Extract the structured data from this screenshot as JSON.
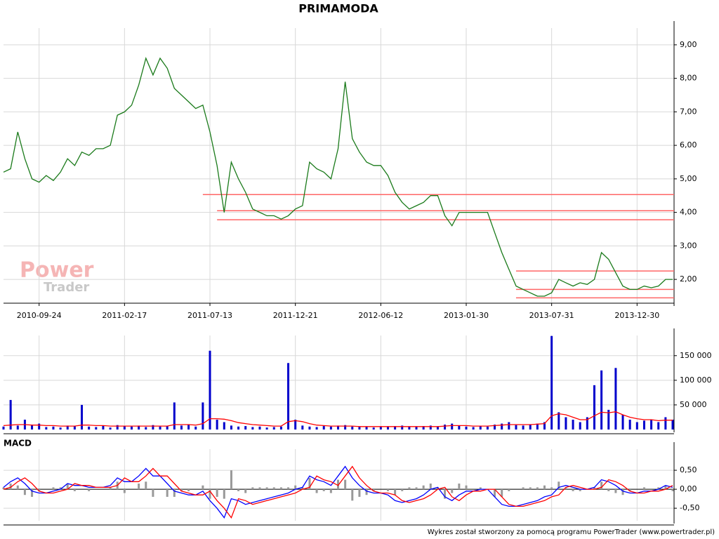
{
  "chart_data": [
    {
      "type": "line",
      "title": "PRIMAMODA",
      "watermark": [
        "Power",
        "Trader"
      ],
      "categories": [
        null,
        null,
        null,
        null,
        null,
        "2010-09-24",
        null,
        null,
        null,
        null,
        null,
        null,
        null,
        null,
        null,
        null,
        null,
        "2011-02-17",
        null,
        null,
        null,
        null,
        null,
        null,
        null,
        null,
        null,
        null,
        null,
        "2011-07-13",
        null,
        null,
        null,
        null,
        null,
        null,
        null,
        null,
        null,
        null,
        null,
        "2011-12-21",
        null,
        null,
        null,
        null,
        null,
        null,
        null,
        null,
        null,
        null,
        null,
        "2012-06-12",
        null,
        null,
        null,
        null,
        null,
        null,
        null,
        null,
        null,
        null,
        null,
        "2013-01-30",
        null,
        null,
        null,
        null,
        null,
        null,
        null,
        null,
        null,
        null,
        null,
        "2013-07-31",
        null,
        null,
        null,
        null,
        null,
        null,
        null,
        null,
        null,
        null,
        null,
        "2013-12-30",
        null,
        null,
        null,
        null,
        null
      ],
      "values": [
        5.2,
        5.3,
        6.4,
        5.6,
        5.0,
        4.9,
        5.1,
        4.95,
        5.2,
        5.6,
        5.4,
        5.8,
        5.7,
        5.9,
        5.9,
        6.0,
        6.9,
        7.0,
        7.2,
        7.8,
        8.6,
        8.1,
        8.6,
        8.3,
        7.7,
        7.5,
        7.3,
        7.1,
        7.2,
        6.4,
        5.4,
        4.0,
        5.5,
        5.0,
        4.6,
        4.1,
        4.0,
        3.9,
        3.9,
        3.8,
        3.9,
        4.1,
        4.2,
        5.5,
        5.3,
        5.2,
        5.0,
        5.9,
        7.9,
        6.2,
        5.8,
        5.5,
        5.4,
        5.4,
        5.1,
        4.6,
        4.3,
        4.1,
        4.2,
        4.3,
        4.5,
        4.5,
        3.9,
        3.6,
        4.0,
        4.0,
        4.0,
        4.0,
        4.0,
        3.4,
        2.8,
        2.3,
        1.8,
        1.7,
        1.6,
        1.5,
        1.5,
        1.6,
        2.0,
        1.9,
        1.8,
        1.9,
        1.85,
        2.0,
        2.8,
        2.6,
        2.2,
        1.8,
        1.7,
        1.7,
        1.8,
        1.75,
        1.8,
        2.0,
        2.0
      ],
      "color": "#1a7a1a",
      "levels": [
        {
          "value": 4.53,
          "start": 28
        },
        {
          "value": 4.05,
          "start": 30
        },
        {
          "value": 3.78,
          "start": 30
        },
        {
          "value": 2.25,
          "start": 72
        },
        {
          "value": 1.7,
          "start": 72
        },
        {
          "value": 1.45,
          "start": 72
        }
      ],
      "level_color": "#ff6666",
      "ylim": [
        1.29,
        9.5
      ],
      "yticks": [
        {
          "value": 2,
          "label": "2,00"
        },
        {
          "value": 3,
          "label": "3,00"
        },
        {
          "value": 4,
          "label": "4,00"
        },
        {
          "value": 5,
          "label": "5,00"
        },
        {
          "value": 6,
          "label": "6,00"
        },
        {
          "value": 7,
          "label": "7,00"
        },
        {
          "value": 8,
          "label": "8,00"
        },
        {
          "value": 9,
          "label": "9,00"
        }
      ],
      "grid": true
    },
    {
      "type": "bar",
      "series": [
        {
          "color": "#0000cc",
          "values": [
            6000,
            60000,
            8000,
            20000,
            10000,
            12000,
            5000,
            6000,
            4000,
            8000,
            7000,
            50000,
            6000,
            5000,
            8000,
            4000,
            9000,
            7000,
            6000,
            8000,
            5000,
            9000,
            6000,
            7000,
            55000,
            8000,
            10000,
            6000,
            55000,
            160000,
            20000,
            15000,
            8000,
            6000,
            7000,
            5000,
            6000,
            4000,
            5000,
            6000,
            135000,
            20000,
            8000,
            6000,
            5000,
            7000,
            6000,
            8000,
            9000,
            6000,
            5000,
            6000,
            4000,
            5000,
            6000,
            7000,
            8000,
            5000,
            6000,
            7000,
            8000,
            6000,
            10000,
            12000,
            8000,
            6000,
            5000,
            7000,
            6000,
            10000,
            12000,
            15000,
            9000,
            8000,
            10000,
            12000,
            15000,
            190000,
            35000,
            25000,
            20000,
            15000,
            25000,
            90000,
            120000,
            40000,
            125000,
            30000,
            20000,
            15000,
            18000,
            20000,
            15000,
            25000,
            20000
          ]
        },
        {
          "color": "#ff0000",
          "kind": "line",
          "values": [
            8000,
            9000,
            10000,
            10000,
            9000,
            9000,
            8000,
            8000,
            7000,
            7000,
            7000,
            9000,
            9000,
            8000,
            8000,
            7000,
            7000,
            7000,
            7000,
            7000,
            7000,
            7000,
            7000,
            7000,
            10000,
            10000,
            10000,
            9000,
            12000,
            22000,
            22000,
            21000,
            18000,
            14000,
            12000,
            10000,
            9000,
            8000,
            7000,
            7000,
            16000,
            18000,
            16000,
            12000,
            9000,
            8000,
            7000,
            7000,
            7000,
            7000,
            6000,
            6000,
            6000,
            6000,
            6000,
            6000,
            6000,
            6000,
            6000,
            6000,
            6000,
            6000,
            7000,
            8000,
            8000,
            8000,
            7000,
            7000,
            7000,
            8000,
            9000,
            10000,
            10000,
            10000,
            10000,
            11000,
            12000,
            28000,
            32000,
            30000,
            25000,
            20000,
            20000,
            28000,
            35000,
            34000,
            36000,
            30000,
            25000,
            22000,
            20000,
            20000,
            18000,
            19000,
            19000
          ]
        }
      ],
      "ylim": [
        0,
        191000
      ],
      "yticks": [
        {
          "value": 50000,
          "label": "50 000"
        },
        {
          "value": 100000,
          "label": "100 000"
        },
        {
          "value": 150000,
          "label": "150 000"
        }
      ],
      "grid": true
    },
    {
      "type": "line",
      "title": "MACD",
      "series": [
        {
          "color": "#999999",
          "kind": "bar",
          "values": [
            0.05,
            0.15,
            0.1,
            -0.15,
            -0.2,
            -0.05,
            0,
            0.05,
            0.05,
            0.15,
            -0.05,
            0,
            -0.05,
            0,
            0,
            0.05,
            0.2,
            -0.1,
            0,
            0.15,
            0.2,
            -0.2,
            0,
            -0.2,
            -0.2,
            -0.05,
            -0.05,
            0,
            0.1,
            -0.25,
            -0.2,
            -0.25,
            0.5,
            -0.05,
            -0.1,
            0.05,
            0.05,
            0.05,
            0.05,
            0.05,
            0.05,
            0.1,
            0.05,
            0.3,
            -0.1,
            -0.05,
            -0.1,
            0.25,
            0.25,
            -0.3,
            -0.2,
            -0.15,
            -0.05,
            0,
            -0.05,
            -0.15,
            -0.05,
            0.05,
            0.05,
            0.1,
            0.15,
            0.05,
            -0.25,
            -0.1,
            0.15,
            0.1,
            0,
            0.05,
            0,
            -0.2,
            -0.2,
            -0.05,
            0,
            0.05,
            0.05,
            0.05,
            0.1,
            0.05,
            0.2,
            0.05,
            -0.05,
            -0.05,
            0,
            0.05,
            0.2,
            -0.05,
            -0.1,
            -0.15,
            -0.05,
            0,
            0.05,
            0,
            0.05,
            0.1,
            -0.05
          ]
        },
        {
          "color": "#0000ff",
          "values": [
            0.05,
            0.2,
            0.3,
            0.15,
            -0.05,
            -0.1,
            -0.1,
            -0.05,
            0,
            0.15,
            0.1,
            0.1,
            0.05,
            0.05,
            0.05,
            0.1,
            0.3,
            0.2,
            0.2,
            0.35,
            0.55,
            0.35,
            0.35,
            0.15,
            -0.05,
            -0.1,
            -0.15,
            -0.15,
            -0.05,
            -0.3,
            -0.5,
            -0.75,
            -0.25,
            -0.3,
            -0.4,
            -0.35,
            -0.3,
            -0.25,
            -0.2,
            -0.15,
            -0.1,
            0,
            0.05,
            0.35,
            0.25,
            0.2,
            0.1,
            0.35,
            0.6,
            0.3,
            0.1,
            -0.05,
            -0.1,
            -0.1,
            -0.15,
            -0.3,
            -0.35,
            -0.3,
            -0.25,
            -0.15,
            0,
            0.05,
            -0.2,
            -0.3,
            -0.15,
            -0.05,
            -0.05,
            0,
            0,
            -0.2,
            -0.4,
            -0.45,
            -0.45,
            -0.4,
            -0.35,
            -0.3,
            -0.2,
            -0.15,
            0.05,
            0.1,
            0.05,
            0,
            0,
            0.05,
            0.25,
            0.2,
            0.1,
            -0.05,
            -0.1,
            -0.1,
            -0.05,
            -0.05,
            0,
            0.1,
            0.05
          ]
        },
        {
          "color": "#ff0000",
          "values": [
            0,
            0.05,
            0.2,
            0.3,
            0.15,
            -0.05,
            -0.1,
            -0.1,
            -0.05,
            0,
            0.15,
            0.1,
            0.1,
            0.05,
            0.05,
            0.05,
            0.1,
            0.3,
            0.2,
            0.2,
            0.35,
            0.55,
            0.35,
            0.35,
            0.15,
            -0.05,
            -0.1,
            -0.15,
            -0.15,
            -0.05,
            -0.3,
            -0.5,
            -0.75,
            -0.25,
            -0.3,
            -0.4,
            -0.35,
            -0.3,
            -0.25,
            -0.2,
            -0.15,
            -0.1,
            0,
            0.05,
            0.35,
            0.25,
            0.2,
            0.1,
            0.35,
            0.6,
            0.3,
            0.1,
            -0.05,
            -0.1,
            -0.1,
            -0.15,
            -0.3,
            -0.35,
            -0.3,
            -0.25,
            -0.15,
            0,
            0.05,
            -0.2,
            -0.3,
            -0.15,
            -0.05,
            -0.05,
            0,
            0,
            -0.2,
            -0.4,
            -0.45,
            -0.45,
            -0.4,
            -0.35,
            -0.3,
            -0.2,
            -0.15,
            0.05,
            0.1,
            0.05,
            0,
            0,
            0.05,
            0.25,
            0.2,
            0.1,
            -0.05,
            -0.1,
            -0.1,
            -0.05,
            -0.05,
            0,
            0.1
          ]
        }
      ],
      "zero": 0,
      "ylim": [
        -0.83,
        1.056
      ],
      "yticks": [
        {
          "value": -0.5,
          "label": "-0,50"
        },
        {
          "value": 0,
          "label": "0,00"
        },
        {
          "value": 0.5,
          "label": "0,50"
        }
      ],
      "grid": true
    }
  ],
  "footer": "Wykres został stworzony za pomocą programu PowerTrader (www.powertrader.pl)"
}
